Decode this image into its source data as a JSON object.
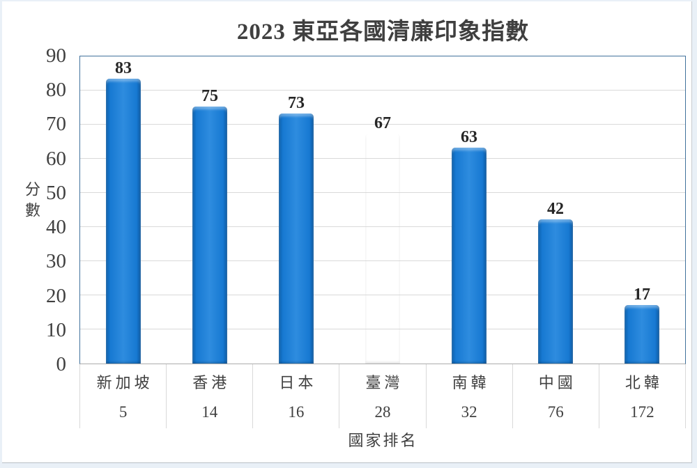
{
  "page": {
    "background": "#e9f0f7",
    "surface": "#ffffff"
  },
  "chart_data": {
    "type": "bar",
    "title": "2023 東亞各國清廉印象指數",
    "ylabel": "分數",
    "xlabel": "國家排名",
    "ylim": [
      0,
      90
    ],
    "yticks": [
      0,
      10,
      20,
      30,
      40,
      50,
      60,
      70,
      80,
      90
    ],
    "grid": true,
    "legend": "none",
    "categories": [
      "新加坡",
      "香港",
      "日本",
      "臺灣",
      "南韓",
      "中國",
      "北韓"
    ],
    "ranks": [
      "5",
      "14",
      "16",
      "28",
      "32",
      "76",
      "172"
    ],
    "values": [
      83,
      75,
      73,
      67,
      63,
      42,
      17
    ],
    "value_labels": [
      "83",
      "75",
      "73",
      "67",
      "63",
      "42",
      "17"
    ],
    "highlight_index": 3,
    "highlight_category": "臺灣"
  },
  "colors": {
    "bar_blue": "#1779d2",
    "bar_blue_edge": "#0b5fab",
    "bar_highlight": "#fbd3a4",
    "bar_highlight_edge": "#cf8c4e",
    "plot_border": "#41719c",
    "gridline": "#d9d9d9",
    "axis_line": "#ababab",
    "title_text": "#3f3f3f",
    "tick_text": "#404040",
    "value_label_text": "#262626"
  }
}
